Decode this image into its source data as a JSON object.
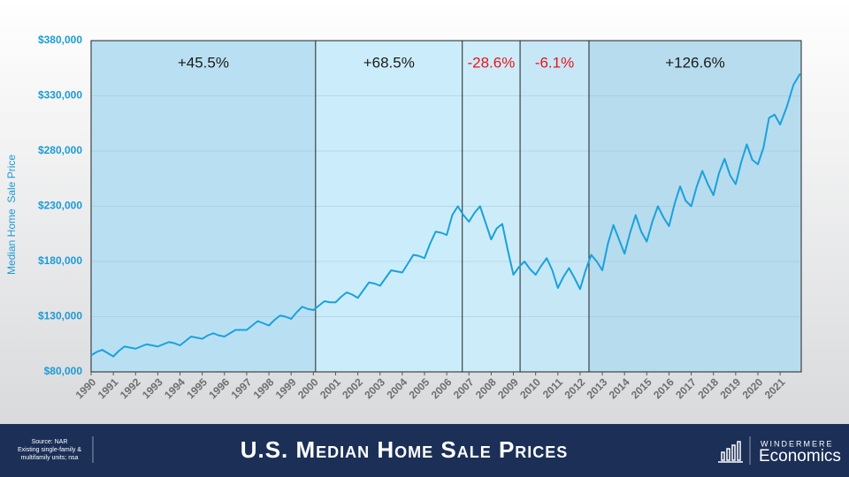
{
  "chart_data": {
    "type": "line",
    "title": "U.S. Median Home Sale Prices",
    "y_label": "Median Home  Sale Price",
    "source": [
      "Source: NAR",
      "Existing single-family &",
      "multifamily units; nsa"
    ],
    "brand": {
      "name": "WINDERMERE",
      "product": "Economics"
    },
    "color": "#1ba1dc",
    "x": [
      1990,
      1990.25,
      1990.5,
      1990.75,
      1991,
      1991.25,
      1991.5,
      1991.75,
      1992,
      1992.25,
      1992.5,
      1992.75,
      1993,
      1993.25,
      1993.5,
      1993.75,
      1994,
      1994.25,
      1994.5,
      1994.75,
      1995,
      1995.25,
      1995.5,
      1995.75,
      1996,
      1996.25,
      1996.5,
      1996.75,
      1997,
      1997.25,
      1997.5,
      1997.75,
      1998,
      1998.25,
      1998.5,
      1998.75,
      1999,
      1999.25,
      1999.5,
      1999.75,
      2000,
      2000.25,
      2000.5,
      2000.75,
      2001,
      2001.25,
      2001.5,
      2001.75,
      2002,
      2002.25,
      2002.5,
      2002.75,
      2003,
      2003.25,
      2003.5,
      2003.75,
      2004,
      2004.25,
      2004.5,
      2004.75,
      2005,
      2005.25,
      2005.5,
      2005.75,
      2006,
      2006.25,
      2006.5,
      2006.75,
      2007,
      2007.25,
      2007.5,
      2007.75,
      2008,
      2008.25,
      2008.5,
      2008.75,
      2009,
      2009.25,
      2009.5,
      2009.75,
      2010,
      2010.25,
      2010.5,
      2010.75,
      2011,
      2011.25,
      2011.5,
      2011.75,
      2012,
      2012.25,
      2012.5,
      2012.75,
      2013,
      2013.25,
      2013.5,
      2013.75,
      2014,
      2014.25,
      2014.5,
      2014.75,
      2015,
      2015.25,
      2015.5,
      2015.75,
      2016,
      2016.25,
      2016.5,
      2016.75,
      2017,
      2017.25,
      2017.5,
      2017.75,
      2018,
      2018.25,
      2018.5,
      2018.75,
      2019,
      2019.25,
      2019.5,
      2019.75,
      2020,
      2020.25,
      2020.5,
      2020.75,
      2021,
      2021.3,
      2021.6,
      2021.9
    ],
    "values": [
      95000,
      98000,
      100000,
      97000,
      94000,
      99000,
      103000,
      102000,
      101000,
      103000,
      105000,
      104000,
      103000,
      105000,
      107000,
      106000,
      104000,
      108000,
      112000,
      111000,
      110000,
      113000,
      115000,
      113000,
      112000,
      115000,
      118000,
      118000,
      118000,
      122000,
      126000,
      124000,
      122000,
      127000,
      131000,
      130000,
      128000,
      134000,
      139000,
      137000,
      136000,
      140000,
      144000,
      143000,
      143000,
      148000,
      152000,
      150000,
      147000,
      154000,
      161000,
      160000,
      158000,
      165000,
      172000,
      171000,
      170000,
      178000,
      186000,
      185000,
      183000,
      196000,
      207000,
      206000,
      204000,
      222000,
      230000,
      222000,
      216000,
      224000,
      230000,
      215000,
      200000,
      210000,
      214000,
      190000,
      168000,
      175000,
      180000,
      173000,
      168000,
      176000,
      183000,
      172000,
      156000,
      166000,
      174000,
      165000,
      155000,
      172000,
      186000,
      180000,
      172000,
      196000,
      213000,
      200000,
      187000,
      206000,
      222000,
      207000,
      198000,
      216000,
      230000,
      220000,
      212000,
      232000,
      248000,
      235000,
      230000,
      248000,
      262000,
      250000,
      240000,
      260000,
      273000,
      258000,
      250000,
      270000,
      286000,
      272000,
      268000,
      283000,
      310000,
      313000,
      304000,
      320000,
      340000,
      350000
    ],
    "xlim": [
      1990,
      2021.95
    ],
    "ylim": [
      80000,
      380000
    ],
    "xticks": [
      1990,
      1991,
      1992,
      1993,
      1994,
      1995,
      1996,
      1997,
      1998,
      1999,
      2000,
      2001,
      2002,
      2003,
      2004,
      2005,
      2006,
      2007,
      2008,
      2009,
      2010,
      2011,
      2012,
      2013,
      2014,
      2015,
      2016,
      2017,
      2018,
      2019,
      2020,
      2021
    ],
    "yticks": [
      {
        "value": 80000,
        "label": "$80,000"
      },
      {
        "value": 130000,
        "label": "$130,000"
      },
      {
        "value": 180000,
        "label": "$180,000"
      },
      {
        "value": 230000,
        "label": "$230,000"
      },
      {
        "value": 280000,
        "label": "$280,000"
      },
      {
        "value": 330000,
        "label": "$330,000"
      },
      {
        "value": 380000,
        "label": "$380,000"
      }
    ],
    "grid": true,
    "regions": [
      {
        "start": 1990,
        "end": 2000.1,
        "label": "+45.5%",
        "color": "#1a1a1a",
        "fill": "#b9e0f2"
      },
      {
        "start": 2000.1,
        "end": 2006.7,
        "label": "+68.5%",
        "color": "#1a1a1a",
        "fill": "#cbedfb"
      },
      {
        "start": 2006.7,
        "end": 2009.3,
        "label": "-28.6%",
        "color": "#e8141b",
        "fill": "#cdecf9"
      },
      {
        "start": 2009.3,
        "end": 2012.4,
        "label": "-6.1%",
        "color": "#e8141b",
        "fill": "#c6e7f6"
      },
      {
        "start": 2012.4,
        "end": 2021.95,
        "label": "+126.6%",
        "color": "#1a1a1a",
        "fill": "#b6dcee"
      }
    ]
  }
}
